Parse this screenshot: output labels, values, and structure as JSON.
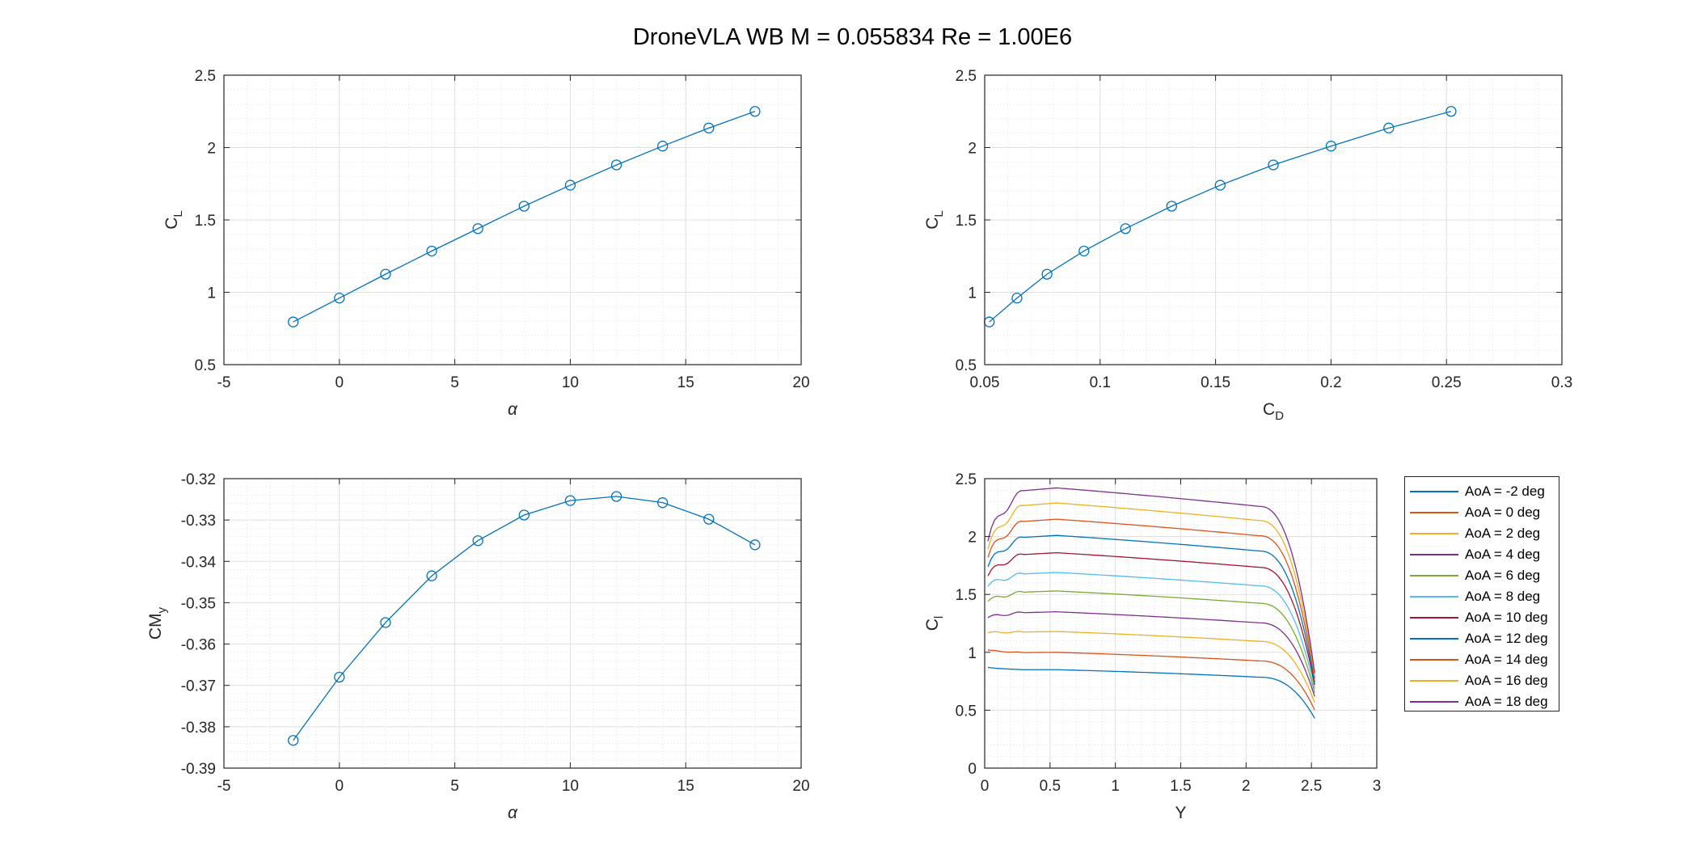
{
  "figure_title": "DroneVLA  WB  M = 0.055834  Re = 1.00E6",
  "colors": {
    "series": [
      "#0072bd",
      "#d95319",
      "#edb120",
      "#7e2f8e",
      "#77ac30",
      "#4dbeee",
      "#a2142f"
    ],
    "primary": "#0072bd"
  },
  "chart_data": [
    {
      "type": "line",
      "xlabel": "α",
      "ylabel": "C_L",
      "xlim": [
        -5,
        20
      ],
      "ylim": [
        0.5,
        2.5
      ],
      "xticks": [
        -5,
        0,
        5,
        10,
        15,
        20
      ],
      "yticks": [
        0.5,
        1,
        1.5,
        2,
        2.5
      ],
      "grid": true,
      "markers": "circle",
      "series": [
        {
          "x": [
            -2,
            0,
            2,
            4,
            6,
            8,
            10,
            12,
            14,
            16,
            18
          ],
          "y": [
            0.795,
            0.96,
            1.125,
            1.285,
            1.44,
            1.595,
            1.74,
            1.88,
            2.01,
            2.135,
            2.25
          ]
        }
      ]
    },
    {
      "type": "line",
      "xlabel": "C_D",
      "ylabel": "C_L",
      "xlim": [
        0.05,
        0.3
      ],
      "ylim": [
        0.5,
        2.5
      ],
      "xticks": [
        0.05,
        0.1,
        0.15,
        0.2,
        0.25,
        0.3
      ],
      "yticks": [
        0.5,
        1,
        1.5,
        2,
        2.5
      ],
      "grid": true,
      "markers": "circle",
      "series": [
        {
          "x": [
            0.052,
            0.064,
            0.077,
            0.093,
            0.111,
            0.131,
            0.152,
            0.175,
            0.2,
            0.225,
            0.252
          ],
          "y": [
            0.795,
            0.96,
            1.125,
            1.285,
            1.44,
            1.595,
            1.74,
            1.88,
            2.01,
            2.135,
            2.25
          ]
        }
      ]
    },
    {
      "type": "line",
      "xlabel": "α",
      "ylabel": "CM_y",
      "xlim": [
        -5,
        20
      ],
      "ylim": [
        -0.39,
        -0.32
      ],
      "xticks": [
        -5,
        0,
        5,
        10,
        15,
        20
      ],
      "yticks": [
        -0.39,
        -0.38,
        -0.37,
        -0.36,
        -0.35,
        -0.34,
        -0.33,
        -0.32
      ],
      "grid": true,
      "markers": "circle",
      "series": [
        {
          "x": [
            -2,
            0,
            2,
            4,
            6,
            8,
            10,
            12,
            14,
            16,
            18
          ],
          "y": [
            -0.3833,
            -0.368,
            -0.3548,
            -0.3435,
            -0.335,
            -0.3288,
            -0.3253,
            -0.3243,
            -0.3258,
            -0.3298,
            -0.336
          ]
        }
      ]
    },
    {
      "type": "line",
      "xlabel": "Y",
      "ylabel": "C_l",
      "xlim": [
        0,
        3
      ],
      "ylim": [
        0,
        2.5
      ],
      "xticks": [
        0,
        0.5,
        1,
        1.5,
        2,
        2.5,
        3
      ],
      "yticks": [
        0,
        0.5,
        1,
        1.5,
        2,
        2.5
      ],
      "grid": true,
      "legend": "outside-right",
      "series": [
        {
          "name": "AoA = -2 deg",
          "peak": 0.85,
          "root": 0.87,
          "tip": 0.42
        },
        {
          "name": "AoA = 0 deg",
          "peak": 1.0,
          "root": 1.02,
          "tip": 0.49
        },
        {
          "name": "AoA = 2 deg",
          "peak": 1.18,
          "root": 1.17,
          "tip": 0.55
        },
        {
          "name": "AoA = 4 deg",
          "peak": 1.35,
          "root": 1.3,
          "tip": 0.6
        },
        {
          "name": "AoA = 6 deg",
          "peak": 1.53,
          "root": 1.44,
          "tip": 0.63
        },
        {
          "name": "AoA = 8 deg",
          "peak": 1.69,
          "root": 1.57,
          "tip": 0.66
        },
        {
          "name": "AoA = 10 deg",
          "peak": 1.86,
          "root": 1.66,
          "tip": 0.69
        },
        {
          "name": "AoA = 12 deg",
          "peak": 2.01,
          "root": 1.74,
          "tip": 0.71
        },
        {
          "name": "AoA = 14 deg",
          "peak": 2.15,
          "root": 1.82,
          "tip": 0.74
        },
        {
          "name": "AoA = 16 deg",
          "peak": 2.29,
          "root": 1.89,
          "tip": 0.76
        },
        {
          "name": "AoA = 18 deg",
          "peak": 2.42,
          "root": 1.96,
          "tip": 0.78
        }
      ]
    }
  ]
}
